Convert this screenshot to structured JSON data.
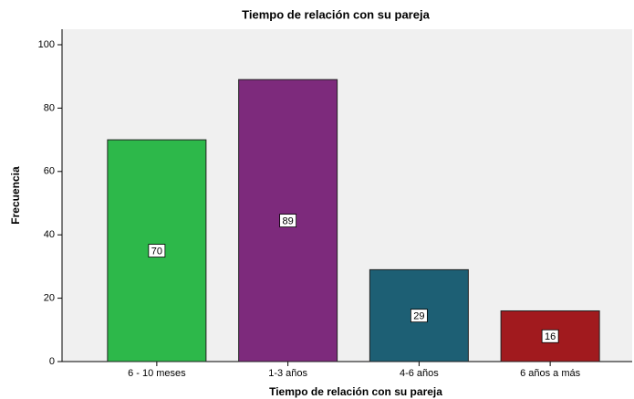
{
  "chart_data": {
    "type": "bar",
    "title": "Tiempo de relación con su pareja",
    "x_label": "Tiempo de relación con su pareja",
    "y_label": "Frecuencia",
    "categories": [
      "6 - 10 meses",
      "1-3 años",
      "4-6 años",
      "6 años a más"
    ],
    "values": [
      70,
      89,
      29,
      16
    ],
    "colors": [
      "#2db84a",
      "#7d2a7c",
      "#1d5f74",
      "#a11a1e"
    ],
    "ylim": [
      0,
      100
    ],
    "yticks": [
      0,
      20,
      40,
      60,
      80,
      100
    ]
  }
}
